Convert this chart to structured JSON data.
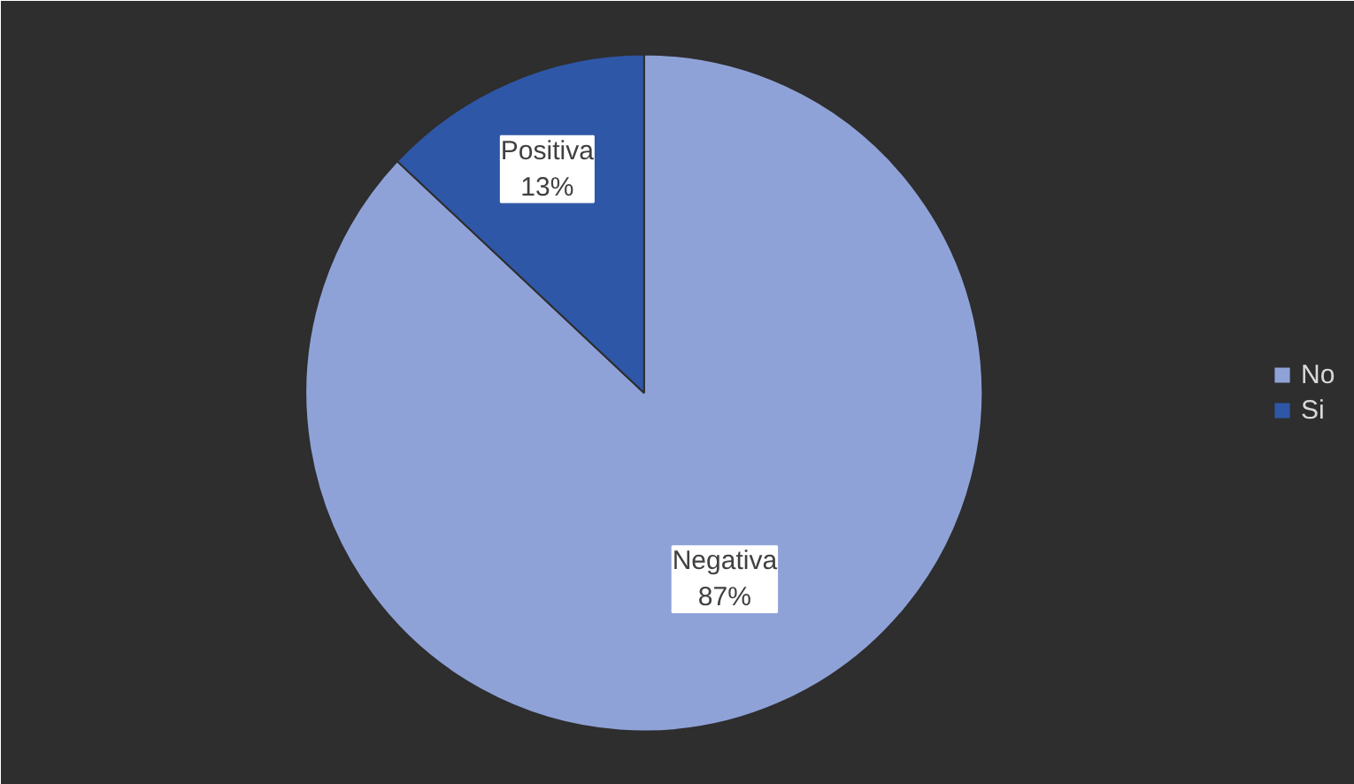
{
  "chart_data": {
    "type": "pie",
    "categories": [
      "No",
      "Si"
    ],
    "values": [
      87,
      13
    ],
    "colors": [
      "#8fa2d8",
      "#2f57a8"
    ],
    "value_labels": [
      "Negativa\n87%",
      "Positiva\n13%"
    ],
    "legend": "right"
  }
}
